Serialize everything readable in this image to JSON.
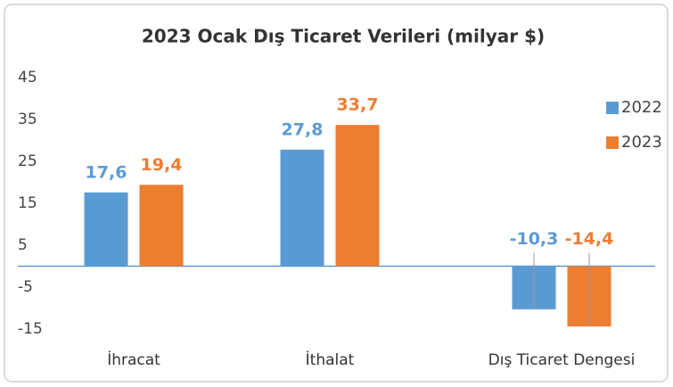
{
  "chart_data": {
    "type": "bar",
    "title": "2023 Ocak Dış Ticaret Verileri (milyar $)",
    "categories": [
      "İhracat",
      "İthalat",
      "Dış Ticaret Dengesi"
    ],
    "series": [
      {
        "name": "2022",
        "color": "#5b9bd5",
        "values": [
          17.6,
          27.8,
          -10.3
        ],
        "value_labels": [
          "17,6",
          "27,8",
          "-10,3"
        ]
      },
      {
        "name": "2023",
        "color": "#ed7d31",
        "values": [
          19.4,
          33.7,
          -14.4
        ],
        "value_labels": [
          "19,4",
          "33,7",
          "-14,4"
        ]
      }
    ],
    "ylim": [
      -15,
      45
    ],
    "yticks": [
      -15,
      -5,
      5,
      15,
      25,
      35,
      45
    ],
    "grid": false,
    "legend": "right"
  }
}
